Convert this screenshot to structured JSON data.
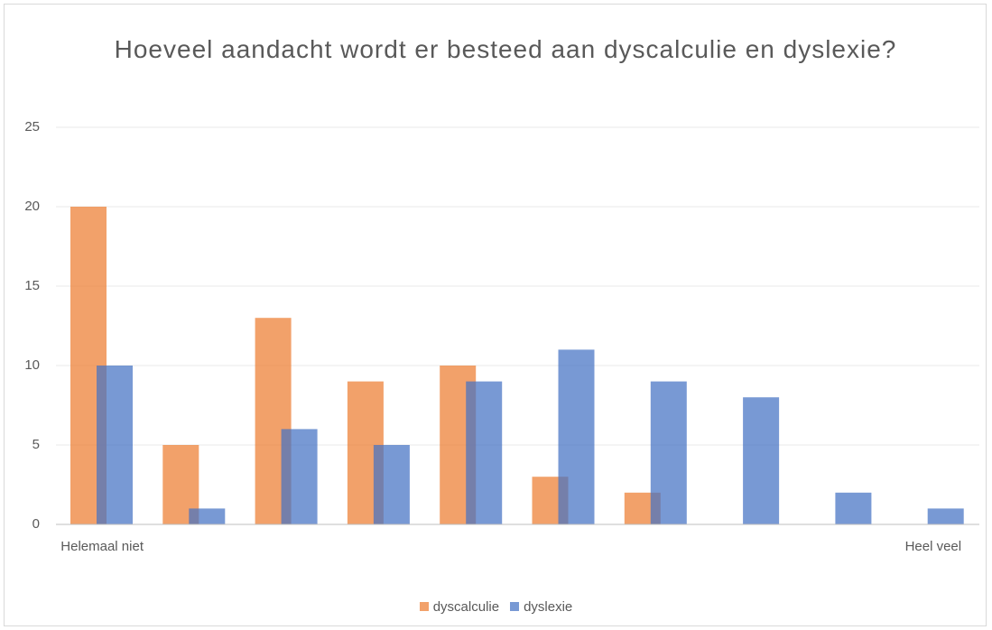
{
  "chart_data": {
    "type": "bar",
    "title": "Hoeveel aandacht wordt er besteed aan dyscalculie en dyslexie?",
    "categories": [
      "Helemaal niet",
      null,
      null,
      null,
      null,
      null,
      null,
      null,
      null,
      "Heel veel"
    ],
    "series": [
      {
        "name": "dyscalculie",
        "color": "#ed7d31",
        "values": [
          20,
          5,
          13,
          9,
          10,
          3,
          2,
          0,
          0,
          0
        ]
      },
      {
        "name": "dyslexie",
        "color": "#4472c4",
        "values": [
          10,
          1,
          6,
          5,
          9,
          11,
          9,
          8,
          2,
          1
        ]
      }
    ],
    "ylim": [
      0,
      25
    ],
    "yticks": [
      0,
      5,
      10,
      15,
      20,
      25
    ],
    "grid": true,
    "legend": "bottom"
  }
}
